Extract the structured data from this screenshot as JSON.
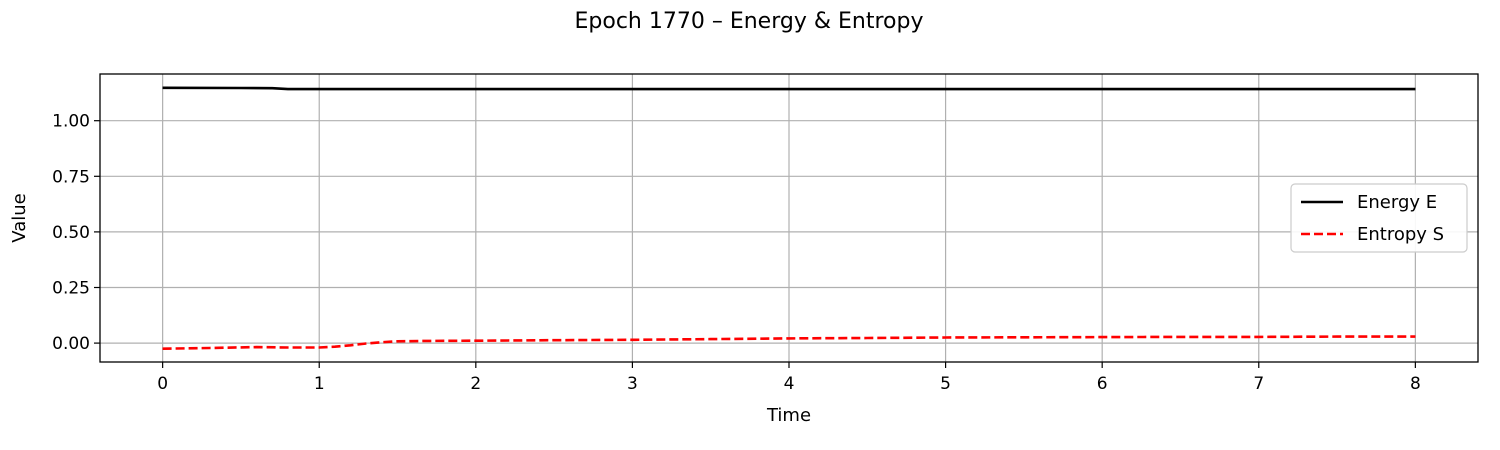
{
  "chart_data": {
    "type": "line",
    "title": "Epoch 1770 – Energy & Entropy",
    "xlabel": "Time",
    "ylabel": "Value",
    "xlim": [
      -0.4,
      8.4
    ],
    "ylim": [
      -0.085,
      1.21
    ],
    "xticks": [
      0,
      1,
      2,
      3,
      4,
      5,
      6,
      7,
      8
    ],
    "xtick_labels": [
      "0",
      "1",
      "2",
      "3",
      "4",
      "5",
      "6",
      "7",
      "8"
    ],
    "yticks": [
      0.0,
      0.25,
      0.5,
      0.75,
      1.0
    ],
    "ytick_labels": [
      "0.00",
      "0.25",
      "0.50",
      "0.75",
      "1.00"
    ],
    "grid": true,
    "legend_position": "center-right",
    "series": [
      {
        "name": "Energy E",
        "color": "#000000",
        "style": "solid",
        "x": [
          0,
          0.5,
          0.7,
          0.8,
          1.0,
          2.0,
          3.0,
          4.0,
          5.0,
          6.0,
          7.0,
          8.0
        ],
        "y": [
          1.148,
          1.147,
          1.146,
          1.142,
          1.142,
          1.142,
          1.142,
          1.142,
          1.142,
          1.142,
          1.142,
          1.142
        ]
      },
      {
        "name": "Entropy S",
        "color": "#ff0000",
        "style": "dashed",
        "x": [
          0,
          0.3,
          0.6,
          0.8,
          1.0,
          1.1,
          1.2,
          1.3,
          1.4,
          1.5,
          1.7,
          2.0,
          2.5,
          3.0,
          3.5,
          4.0,
          4.5,
          5.0,
          5.5,
          6.0,
          6.5,
          7.0,
          7.5,
          8.0
        ],
        "y": [
          -0.025,
          -0.022,
          -0.018,
          -0.02,
          -0.02,
          -0.016,
          -0.01,
          -0.002,
          0.004,
          0.008,
          0.01,
          0.011,
          0.013,
          0.015,
          0.018,
          0.021,
          0.023,
          0.025,
          0.026,
          0.027,
          0.028,
          0.028,
          0.029,
          0.029
        ]
      }
    ]
  }
}
